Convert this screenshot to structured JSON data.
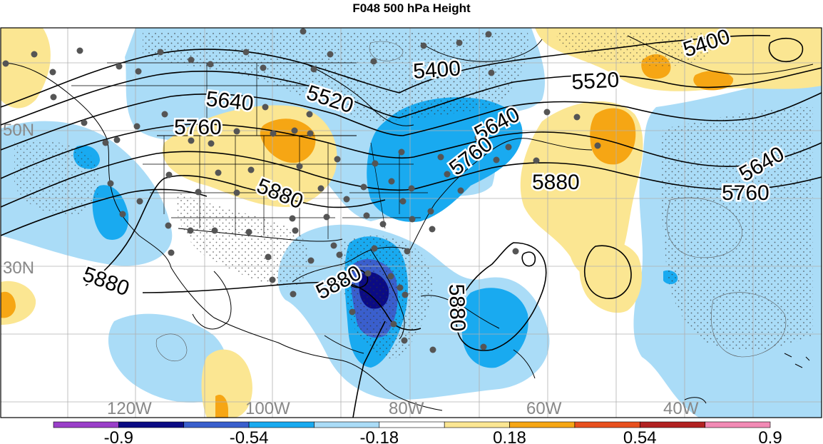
{
  "title": "F048 500 hPa Height",
  "lat_labels": [
    "50N",
    "30N"
  ],
  "lon_labels": [
    "120W",
    "100W",
    "80W",
    "60W",
    "40W"
  ],
  "contour_labels": [
    "5400",
    "5520",
    "5640",
    "5760",
    "5880"
  ],
  "colorbar": {
    "tick_labels": [
      "-0.9",
      "-0.54",
      "-0.18",
      "0.18",
      "0.54",
      "0.9"
    ],
    "colors": [
      "#9a3fc9",
      "#0b0b84",
      "#3a5fcd",
      "#19aaf0",
      "#aadcf7",
      "#ffffff",
      "#fbe692",
      "#f6a614",
      "#e8501e",
      "#b22222",
      "#f28ab5"
    ]
  },
  "colors": {
    "light_blue": "#aadcf7",
    "mid_blue": "#19aaf0",
    "dark_blue": "#3a5fcd",
    "navy": "#0b0b84",
    "light_yellow": "#fbe692",
    "orange": "#f6a614",
    "station_dot": "#555555",
    "contour": "#000000",
    "grid": "#b0b0b0",
    "axis_label": "#888888"
  }
}
